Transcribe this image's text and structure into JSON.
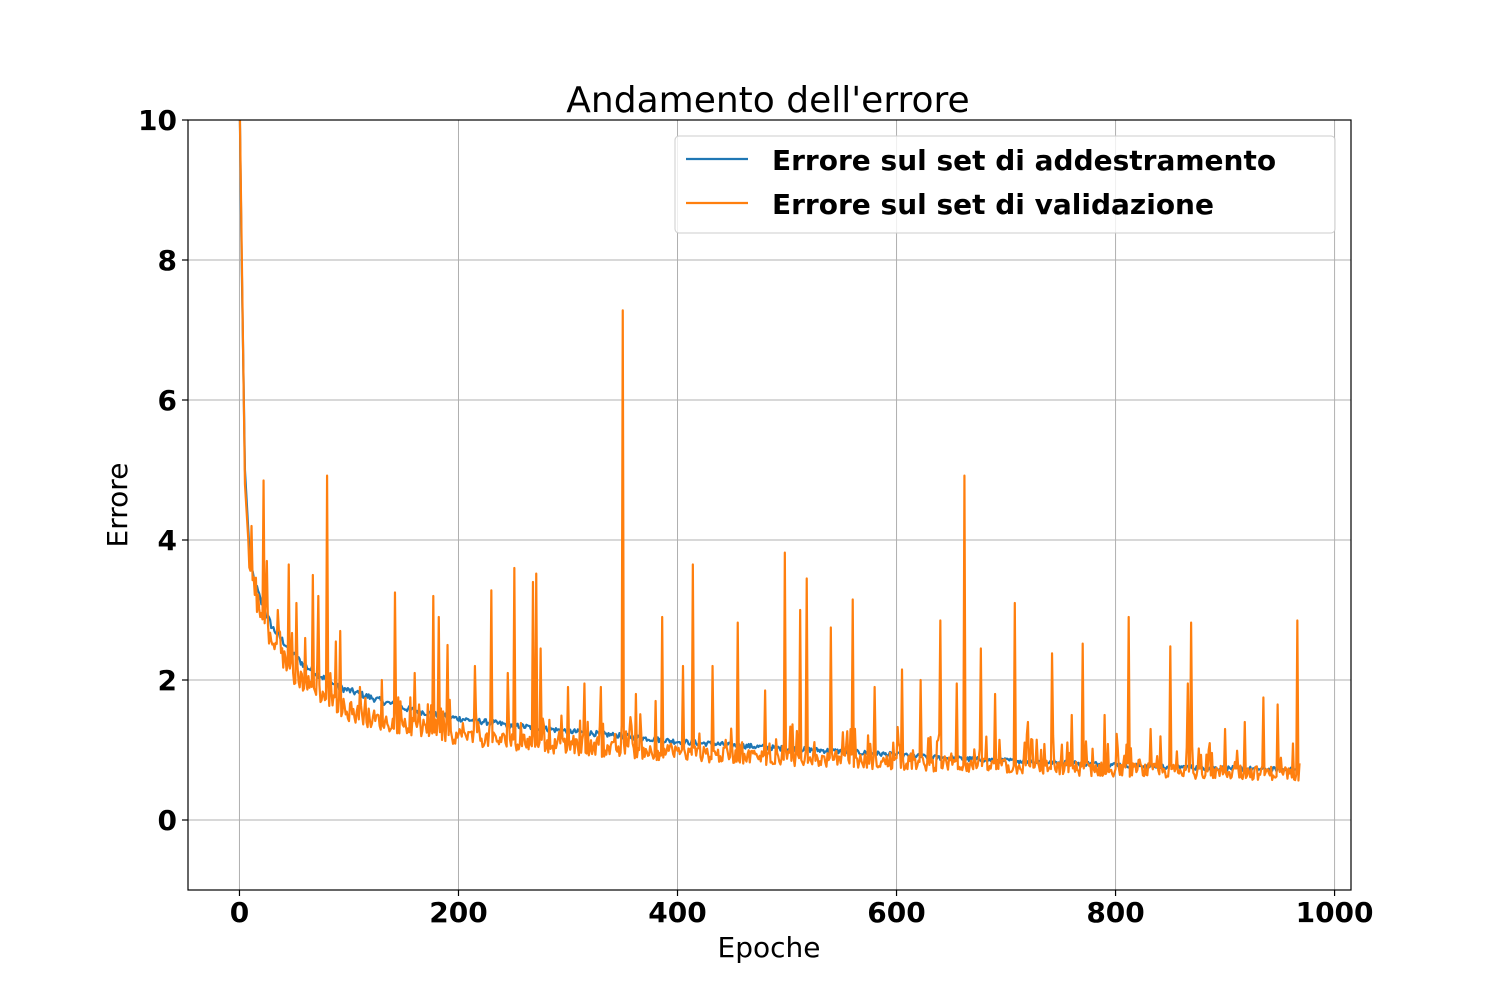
{
  "chart_data": {
    "type": "line",
    "title": "Andamento dell'errore",
    "xlabel": "Epoche",
    "ylabel": "Errore",
    "xlim": [
      -47,
      1015
    ],
    "ylim": [
      -1,
      10
    ],
    "xticks": [
      0,
      200,
      400,
      600,
      800,
      1000
    ],
    "yticks": [
      0,
      2,
      4,
      6,
      8,
      10
    ],
    "grid": true,
    "legend_position": "top-right",
    "series": [
      {
        "name": "Errore sul set di addestramento",
        "color": "#1f77b4",
        "x": [
          0,
          2,
          5,
          10,
          15,
          20,
          30,
          40,
          50,
          60,
          70,
          80,
          90,
          100,
          120,
          150,
          180,
          200,
          250,
          300,
          350,
          400,
          450,
          500,
          550,
          600,
          650,
          700,
          750,
          800,
          850,
          900,
          950,
          968
        ],
        "y": [
          10.5,
          8.0,
          5.0,
          3.6,
          3.35,
          3.1,
          2.75,
          2.55,
          2.35,
          2.2,
          2.1,
          2.0,
          1.9,
          1.85,
          1.75,
          1.6,
          1.5,
          1.45,
          1.35,
          1.27,
          1.2,
          1.12,
          1.07,
          1.02,
          0.98,
          0.93,
          0.88,
          0.85,
          0.82,
          0.79,
          0.76,
          0.74,
          0.72,
          0.71
        ]
      },
      {
        "name": "Errore sul set di validazione",
        "color": "#ff7f0e",
        "x": [
          0,
          2,
          5,
          10,
          15,
          20,
          30,
          40,
          50,
          60,
          70,
          80,
          90,
          100,
          120,
          150,
          180,
          200,
          250,
          300,
          350,
          400,
          450,
          500,
          550,
          600,
          650,
          700,
          750,
          800,
          850,
          900,
          950,
          968
        ],
        "y": [
          10.5,
          8.2,
          4.8,
          3.5,
          3.2,
          2.9,
          2.5,
          2.3,
          2.1,
          1.95,
          1.85,
          1.75,
          1.65,
          1.55,
          1.45,
          1.35,
          1.27,
          1.2,
          1.12,
          1.05,
          1.0,
          0.95,
          0.92,
          0.88,
          0.85,
          0.82,
          0.79,
          0.76,
          0.74,
          0.72,
          0.7,
          0.68,
          0.67,
          0.66
        ],
        "spikes": [
          [
            11,
            4.2
          ],
          [
            22,
            4.85
          ],
          [
            25,
            3.7
          ],
          [
            35,
            3.0
          ],
          [
            45,
            3.65
          ],
          [
            52,
            3.1
          ],
          [
            60,
            2.6
          ],
          [
            67,
            3.5
          ],
          [
            72,
            3.2
          ],
          [
            80,
            4.92
          ],
          [
            88,
            2.55
          ],
          [
            92,
            2.7
          ],
          [
            110,
            1.9
          ],
          [
            130,
            2.0
          ],
          [
            142,
            3.25
          ],
          [
            160,
            2.1
          ],
          [
            177,
            3.2
          ],
          [
            182,
            2.9
          ],
          [
            190,
            2.5
          ],
          [
            215,
            2.2
          ],
          [
            230,
            3.28
          ],
          [
            245,
            2.1
          ],
          [
            251,
            3.6
          ],
          [
            268,
            3.4
          ],
          [
            271,
            3.52
          ],
          [
            275,
            2.45
          ],
          [
            300,
            1.9
          ],
          [
            315,
            1.95
          ],
          [
            330,
            1.9
          ],
          [
            350,
            7.28
          ],
          [
            362,
            1.8
          ],
          [
            380,
            1.7
          ],
          [
            386,
            2.9
          ],
          [
            405,
            2.2
          ],
          [
            414,
            3.65
          ],
          [
            432,
            2.2
          ],
          [
            455,
            2.82
          ],
          [
            480,
            1.85
          ],
          [
            498,
            3.82
          ],
          [
            512,
            3.0
          ],
          [
            518,
            3.45
          ],
          [
            540,
            2.75
          ],
          [
            560,
            3.15
          ],
          [
            580,
            1.9
          ],
          [
            605,
            2.15
          ],
          [
            622,
            2.0
          ],
          [
            640,
            2.85
          ],
          [
            655,
            1.95
          ],
          [
            662,
            4.92
          ],
          [
            677,
            2.45
          ],
          [
            690,
            1.8
          ],
          [
            708,
            3.1
          ],
          [
            720,
            1.4
          ],
          [
            742,
            2.38
          ],
          [
            760,
            1.5
          ],
          [
            770,
            2.52
          ],
          [
            790,
            1.5
          ],
          [
            812,
            2.9
          ],
          [
            832,
            1.3
          ],
          [
            850,
            2.48
          ],
          [
            866,
            1.95
          ],
          [
            869,
            2.82
          ],
          [
            900,
            1.3
          ],
          [
            918,
            1.4
          ],
          [
            935,
            1.75
          ],
          [
            948,
            1.65
          ],
          [
            966,
            2.85
          ],
          [
            969,
            2.45
          ]
        ]
      }
    ]
  }
}
